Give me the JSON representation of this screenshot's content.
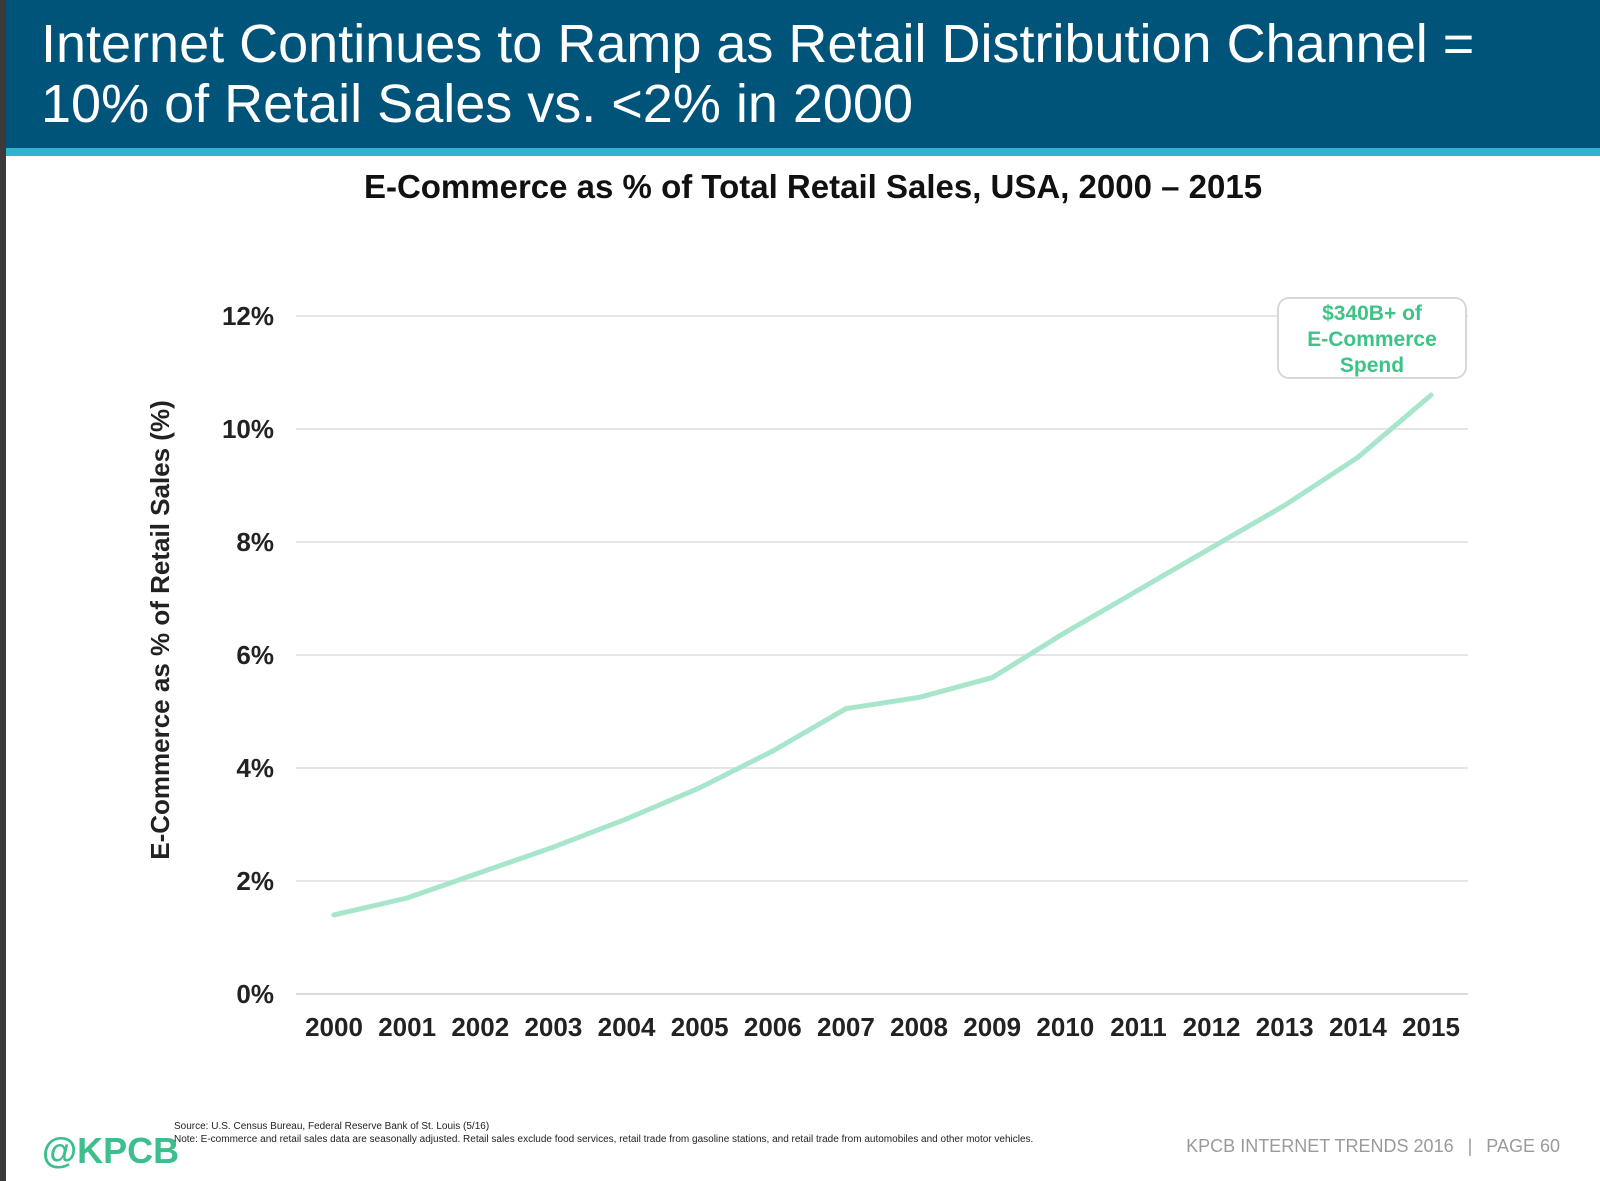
{
  "header": {
    "title": "Internet Continues to Ramp as Retail Distribution Channel = 10% of Retail Sales vs. <2% in 2000"
  },
  "chart_data": {
    "type": "line",
    "title": "E-Commerce as % of Total Retail Sales, USA, 2000 – 2015",
    "ylabel": "E-Commerce as % of Retail Sales (%)",
    "xlabel": "",
    "x": [
      "2000",
      "2001",
      "2002",
      "2003",
      "2004",
      "2005",
      "2006",
      "2007",
      "2008",
      "2009",
      "2010",
      "2011",
      "2012",
      "2013",
      "2014",
      "2015"
    ],
    "series": [
      {
        "values": [
          1.4,
          1.7,
          2.15,
          2.6,
          3.1,
          3.65,
          4.3,
          5.05,
          5.25,
          5.6,
          6.4,
          7.15,
          7.9,
          8.65,
          9.5,
          10.6
        ]
      }
    ],
    "ylim": [
      0,
      12
    ],
    "yticks": [
      0,
      2,
      4,
      6,
      8,
      10,
      12
    ],
    "ytick_labels": [
      "0%",
      "2%",
      "4%",
      "6%",
      "8%",
      "10%",
      "12%"
    ],
    "grid": true,
    "line_color": "#a8e6cc",
    "annotation": {
      "lines": [
        "$340B+ of",
        "E-Commerce",
        "Spend"
      ],
      "color": "#3cc487"
    }
  },
  "footer": {
    "logo": "@KPCB",
    "source": "Source: U.S. Census Bureau, Federal Reserve Bank of St. Louis (5/16)",
    "note": "Note: E-commerce and retail sales data are seasonally adjusted. Retail sales exclude food services, retail trade from gasoline stations, and retail trade from automobiles and other motor vehicles.",
    "report": "KPCB INTERNET TRENDS 2016",
    "separator": "|",
    "page": "PAGE 60"
  },
  "colors": {
    "header_bg": "#00547a",
    "header_rule": "#2fb3cf",
    "accent_green": "#3cbf8c"
  }
}
